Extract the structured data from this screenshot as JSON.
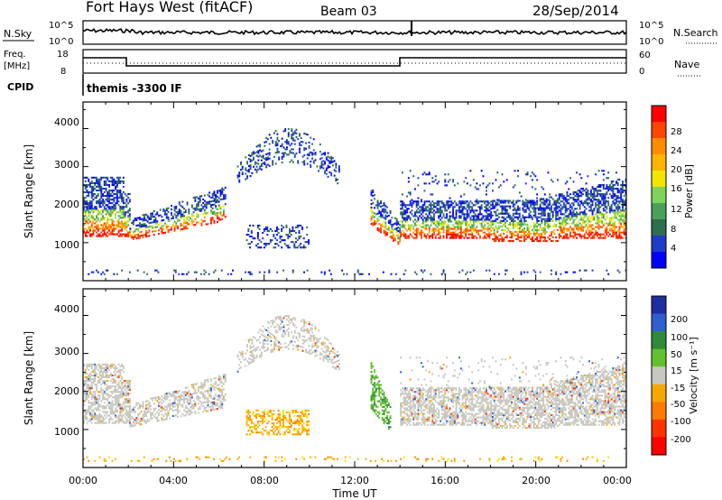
{
  "header": {
    "title": "Fort Hays West (fitACF)",
    "beam": "Beam 03",
    "date": "28/Sep/2014"
  },
  "top_panels": {
    "nsky_label": "N.Sky",
    "nsearch_label": "N.Search",
    "freq_label_1": "Freq.",
    "freq_label_2": "[MHz]",
    "nave_label": "Nave",
    "cpid_label": "CPID",
    "cpid_value": "themis -3300 IF",
    "left_ticks_noise": [
      "10^5",
      "10^0"
    ],
    "right_ticks_noise": [
      "10^5",
      "10^0"
    ],
    "left_ticks_freq": [
      "18",
      "8"
    ],
    "right_ticks_freq": [
      "60",
      "0"
    ]
  },
  "colorbars": {
    "power": {
      "title": "Power [dB]",
      "ticks": [
        "28",
        "24",
        "20",
        "16",
        "12",
        "8",
        "4"
      ],
      "colors": [
        "#0000ff",
        "#1e3cc8",
        "#2d6e4e",
        "#4aa05a",
        "#7ed35a",
        "#f2e600",
        "#ffb400",
        "#ff8c00",
        "#ff4600",
        "#ff0000"
      ]
    },
    "velocity": {
      "title": "Velocity [m s⁻¹]",
      "ticks": [
        "200",
        "100",
        "50",
        "15",
        "-15",
        "-50",
        "-100",
        "-200"
      ],
      "colors": [
        "#1e2ea0",
        "#2f5fd0",
        "#2f8a3a",
        "#62c12e",
        "#c8c8c0",
        "#f5a800",
        "#ff7a00",
        "#ff3300",
        "#ff0000"
      ]
    }
  },
  "axes": {
    "ylabel": "Slant Range [km]",
    "xlabel": "Time UT",
    "yticks": [
      "4000",
      "3000",
      "2000",
      "1000"
    ],
    "xticks": [
      "00:00",
      "04:00",
      "08:00",
      "12:00",
      "16:00",
      "20:00",
      "00:00"
    ]
  },
  "chart_data": [
    {
      "type": "heatmap",
      "panel": "power",
      "ylabel": "Slant Range [km]",
      "ylim": [
        0,
        4700
      ],
      "xlim_hours": [
        0,
        24
      ],
      "colorbar_label": "Power [dB]",
      "features": [
        {
          "x_hours": [
            0,
            2
          ],
          "y_km": [
            1100,
            2900
          ],
          "level": "mid-high"
        },
        {
          "x_hours": [
            2,
            6.3
          ],
          "y_km": [
            1000,
            2400
          ],
          "level": "mid"
        },
        {
          "x_hours": [
            6.8,
            11.3
          ],
          "y_km": [
            2500,
            4100
          ],
          "level": "low"
        },
        {
          "x_hours": [
            7.2,
            10
          ],
          "y_km": [
            900,
            1500
          ],
          "level": "low"
        },
        {
          "x_hours": [
            12.7,
            14
          ],
          "y_km": [
            900,
            2300
          ],
          "level": "mid-high"
        },
        {
          "x_hours": [
            14,
            24
          ],
          "y_km": [
            1000,
            2800
          ],
          "level": "high"
        }
      ]
    },
    {
      "type": "heatmap",
      "panel": "velocity",
      "ylabel": "Slant Range [km]",
      "ylim": [
        0,
        4700
      ],
      "xlim_hours": [
        0,
        24
      ],
      "colorbar_label": "Velocity [m s-1]",
      "features": [
        {
          "x_hours": [
            0,
            6.3
          ],
          "y_km": [
            1000,
            2800
          ],
          "level": "ground-scatter"
        },
        {
          "x_hours": [
            6.8,
            11.3
          ],
          "y_km": [
            2500,
            4100
          ],
          "level": "ground-scatter"
        },
        {
          "x_hours": [
            7.2,
            10
          ],
          "y_km": [
            900,
            1500
          ],
          "level": "negative"
        },
        {
          "x_hours": [
            12.7,
            13.6
          ],
          "y_km": [
            900,
            2800
          ],
          "level": "positive"
        },
        {
          "x_hours": [
            14,
            24
          ],
          "y_km": [
            1000,
            2800
          ],
          "level": "ground-scatter"
        }
      ]
    }
  ]
}
